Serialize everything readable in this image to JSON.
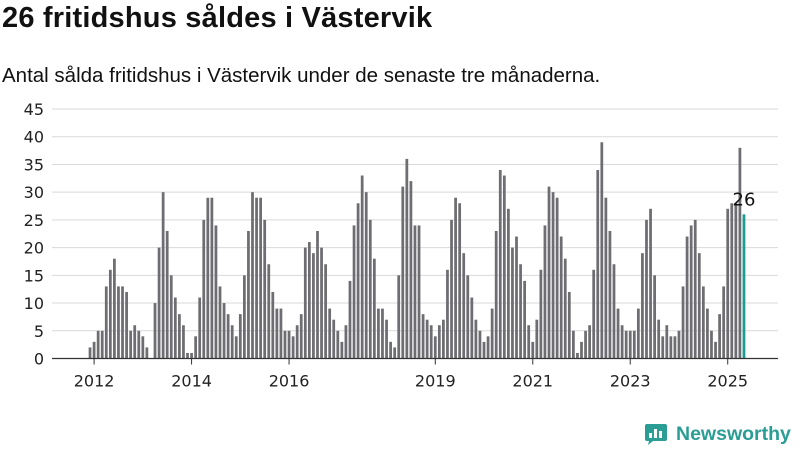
{
  "title": "26 fritidshus såldes i Västervik",
  "subtitle": "Antal sålda fritidshus i Västervik under de senaste tre månaderna.",
  "brand": "Newsworthy",
  "colors": {
    "bar": "#6e6e72",
    "highlight": "#1a9c93",
    "grid": "#d9d9d9",
    "axis": "#333333",
    "brand": "#2a9d94"
  },
  "chart_data": {
    "type": "bar",
    "start_month": "2011-12",
    "end_month": "2025-07",
    "ylim": [
      0,
      45
    ],
    "yticks": [
      0,
      5,
      10,
      15,
      20,
      25,
      30,
      35,
      40,
      45
    ],
    "xticks": [
      "2012",
      "2014",
      "2016",
      "2019",
      "2021",
      "2023",
      "2025"
    ],
    "grid": true,
    "highlight_label": "26",
    "values": [
      2,
      3,
      5,
      5,
      13,
      16,
      18,
      13,
      13,
      12,
      5,
      6,
      5,
      4,
      2,
      0,
      10,
      20,
      30,
      23,
      15,
      11,
      8,
      6,
      1,
      1,
      4,
      11,
      25,
      29,
      29,
      24,
      13,
      10,
      8,
      6,
      4,
      8,
      15,
      23,
      30,
      29,
      29,
      25,
      17,
      12,
      9,
      9,
      5,
      5,
      4,
      6,
      8,
      20,
      21,
      19,
      23,
      20,
      17,
      9,
      7,
      5,
      3,
      6,
      14,
      24,
      28,
      33,
      30,
      25,
      18,
      9,
      9,
      7,
      3,
      2,
      15,
      31,
      36,
      32,
      24,
      24,
      8,
      7,
      6,
      4,
      6,
      7,
      16,
      25,
      29,
      28,
      19,
      15,
      11,
      7,
      5,
      3,
      4,
      9,
      23,
      34,
      33,
      27,
      20,
      22,
      17,
      14,
      6,
      3,
      7,
      16,
      24,
      31,
      30,
      29,
      22,
      18,
      12,
      5,
      1,
      3,
      5,
      6,
      16,
      34,
      39,
      29,
      23,
      17,
      9,
      6,
      5,
      5,
      5,
      9,
      19,
      25,
      27,
      15,
      7,
      4,
      6,
      4,
      4,
      5,
      13,
      22,
      24,
      25,
      19,
      13,
      9,
      5,
      3,
      8,
      13,
      27,
      28,
      28,
      38,
      26
    ]
  }
}
